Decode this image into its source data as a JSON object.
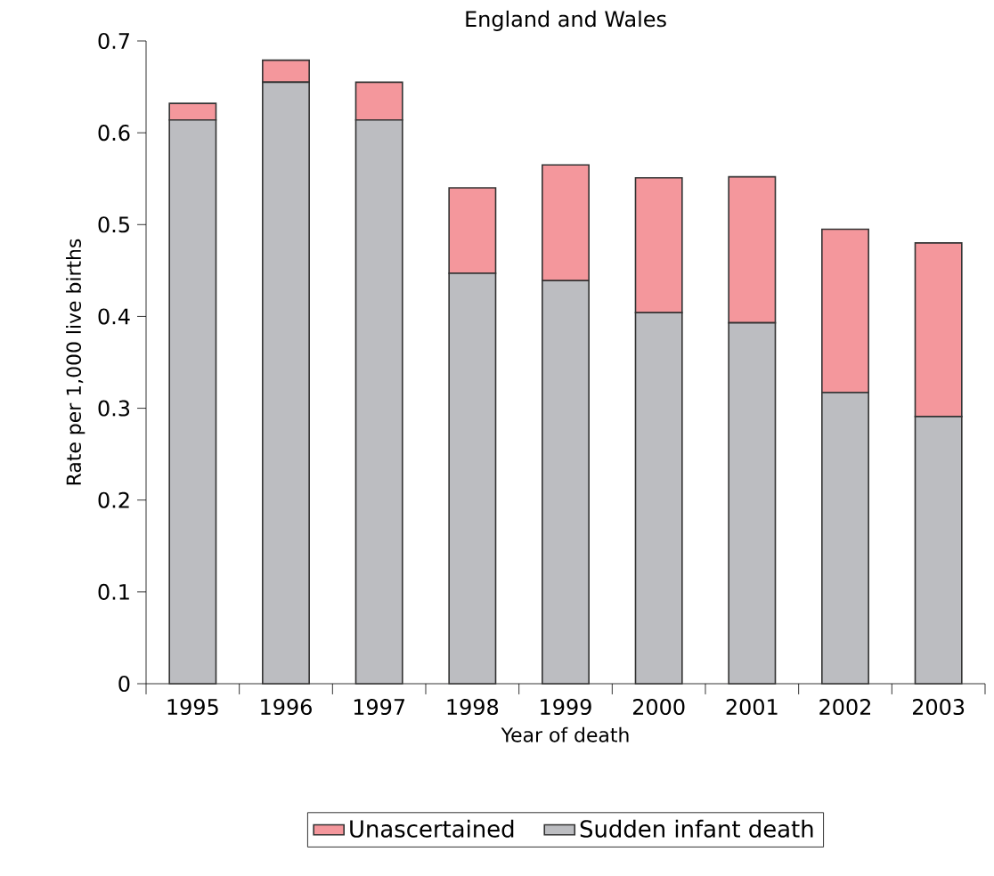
{
  "chart_data": {
    "type": "bar",
    "title": "England and Wales",
    "xlabel": "Year of death",
    "ylabel": "Rate per 1,000 live births",
    "categories": [
      "1995",
      "1996",
      "1997",
      "1998",
      "1999",
      "2000",
      "2001",
      "2002",
      "2003"
    ],
    "stacked": true,
    "series": [
      {
        "name": "Sudden infant death",
        "color": "#bcbdc1",
        "values": [
          0.614,
          0.655,
          0.614,
          0.447,
          0.439,
          0.404,
          0.393,
          0.317,
          0.291
        ]
      },
      {
        "name": "Unascertained",
        "color": "#f4979c",
        "values": [
          0.018,
          0.024,
          0.041,
          0.093,
          0.126,
          0.147,
          0.159,
          0.178,
          0.189
        ]
      }
    ],
    "ylim": [
      0,
      0.7
    ],
    "yticks": [
      0,
      0.1,
      0.2,
      0.3,
      0.4,
      0.5,
      0.6,
      0.7
    ],
    "legend": "bottom"
  }
}
